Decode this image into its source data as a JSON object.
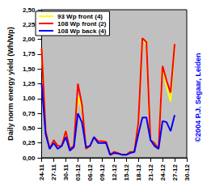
{
  "chart_data": {
    "type": "line",
    "y_label": "Daily norm energy yield (Wh/Wp)",
    "annotation": "©2004 P.J. Segaar, Leiden",
    "categories": [
      "24-11",
      null,
      null,
      "27-11",
      null,
      null,
      "30-11",
      null,
      null,
      "03-12",
      null,
      null,
      "06-12",
      null,
      null,
      "09-12",
      null,
      null,
      "12-12",
      null,
      null,
      "15-12",
      null,
      null,
      "18-12",
      null,
      null,
      "21-12",
      null,
      null,
      "24-12",
      null,
      null,
      "27-12",
      null,
      null,
      "30-12"
    ],
    "series": [
      {
        "name": "93 Wp front (4)",
        "color": "#ffff00",
        "values": [
          1.85,
          0.45,
          0.15,
          0.3,
          0.2,
          0.2,
          0.45,
          0.15,
          0.2,
          1.05,
          0.8,
          0.15,
          0.2,
          0.35,
          0.28,
          0.28,
          0.27,
          0.05,
          0.1,
          0.08,
          0.05,
          0.05,
          0.1,
          0.1,
          0.6,
          2.0,
          1.9,
          0.3,
          0.25,
          0.15,
          1.55,
          1.2,
          0.95,
          1.92,
          null,
          null,
          null
        ]
      },
      {
        "name": "108 Wp front (2)",
        "color": "#ff0000",
        "values": [
          1.85,
          0.45,
          0.15,
          0.3,
          0.2,
          0.2,
          0.45,
          0.15,
          0.2,
          1.25,
          0.9,
          0.15,
          0.2,
          0.35,
          0.28,
          0.28,
          0.27,
          0.05,
          0.1,
          0.08,
          0.05,
          0.05,
          0.1,
          0.1,
          0.6,
          2.02,
          1.95,
          0.3,
          0.25,
          0.15,
          1.55,
          1.3,
          1.1,
          1.92,
          null,
          null,
          null
        ]
      },
      {
        "name": "108 Wp back (4)",
        "color": "#0000ff",
        "values": [
          1.25,
          0.4,
          0.15,
          0.25,
          0.15,
          0.2,
          0.35,
          0.12,
          0.18,
          0.75,
          0.6,
          0.18,
          0.2,
          0.35,
          0.25,
          0.25,
          0.25,
          0.05,
          0.08,
          0.07,
          0.05,
          0.05,
          0.08,
          0.1,
          0.4,
          0.68,
          0.68,
          0.3,
          0.2,
          0.15,
          0.62,
          0.6,
          0.45,
          0.72,
          null,
          null,
          null
        ]
      }
    ],
    "ylim": [
      0,
      2.5
    ],
    "yticks": [
      {
        "value": 0,
        "label": "0,00"
      },
      {
        "value": 0.25,
        "label": "0,25"
      },
      {
        "value": 0.5,
        "label": "0,50"
      },
      {
        "value": 0.75,
        "label": "0,75"
      },
      {
        "value": 1,
        "label": "1,00"
      },
      {
        "value": 1.25,
        "label": "1,25"
      },
      {
        "value": 1.5,
        "label": "1,50"
      },
      {
        "value": 1.75,
        "label": "1,75"
      },
      {
        "value": 2,
        "label": "2,00"
      },
      {
        "value": 2.25,
        "label": "2,25"
      },
      {
        "value": 2.5,
        "label": "2,50"
      }
    ],
    "grid": false,
    "legend": "top-left"
  }
}
